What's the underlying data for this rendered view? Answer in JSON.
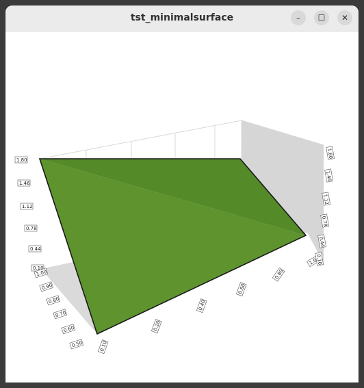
{
  "window": {
    "title": "tst_minimalsurface",
    "buttons": {
      "minimize": "–",
      "maximize": "☐",
      "close": "✕"
    }
  },
  "plot": {
    "vertical_axis_ticks": [
      "1.80",
      "1.46",
      "1.12",
      "0.78",
      "0.44",
      "0.10"
    ],
    "right_axis_ticks": [
      "1.80",
      "1.46",
      "1.12",
      "0.78",
      "0.44",
      "0.10"
    ],
    "left_depth_ticks": [
      "1.00",
      "0.90",
      "0.80",
      "0.70",
      "0.60",
      "0.50"
    ],
    "bottom_axis_ticks": [
      "0.10",
      "0.20",
      "0.40",
      "0.60",
      "0.80",
      "1.00"
    ],
    "surface_color": "#5e932e",
    "surface_dark_color": "#548a28",
    "wall_color": "#d9d9d9"
  }
}
